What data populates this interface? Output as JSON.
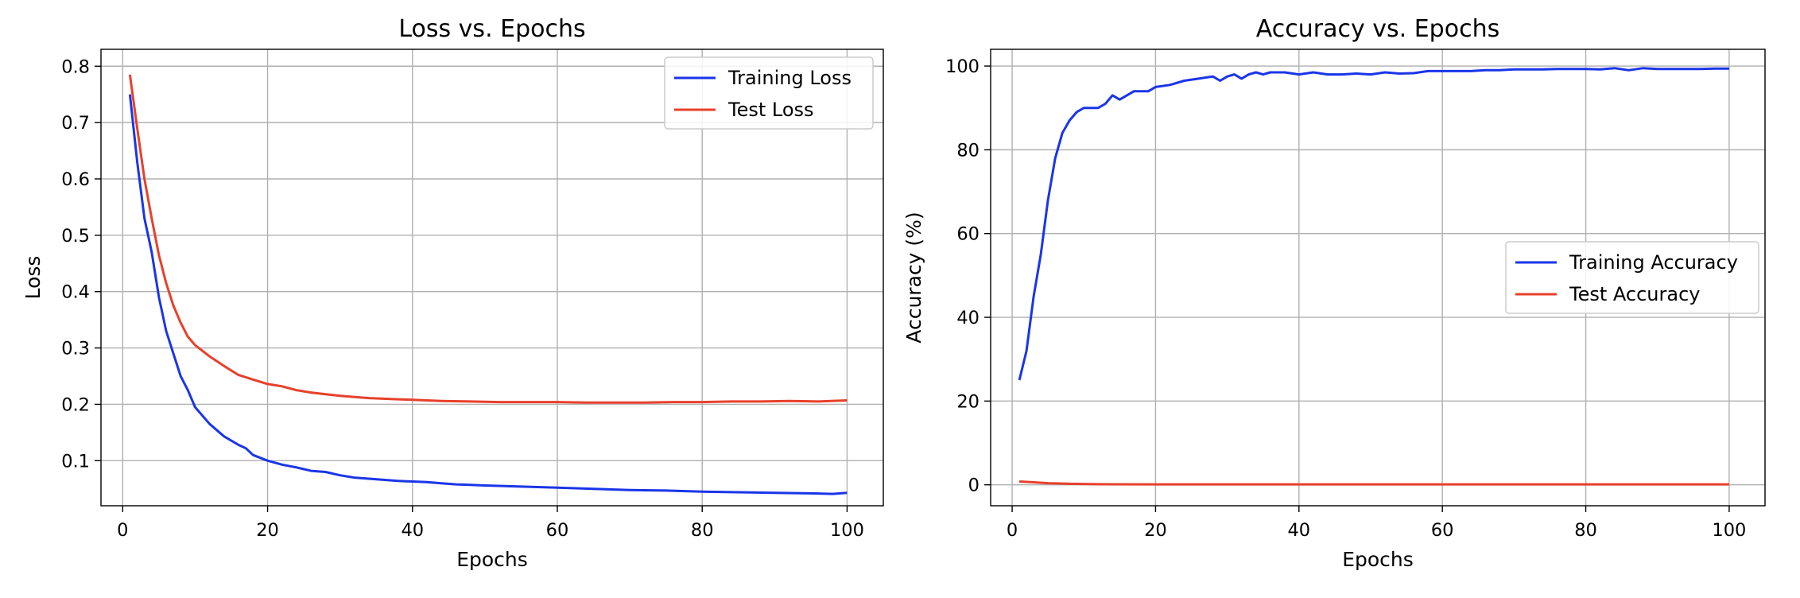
{
  "chart_data": [
    {
      "type": "line",
      "title": "Loss vs. Epochs",
      "xlabel": "Epochs",
      "ylabel": "Loss",
      "xlim": [
        -3,
        105
      ],
      "ylim": [
        0.02,
        0.83
      ],
      "xticks": [
        0,
        20,
        40,
        60,
        80,
        100
      ],
      "yticks": [
        0.1,
        0.2,
        0.3,
        0.4,
        0.5,
        0.6,
        0.7,
        0.8
      ],
      "ytick_labels": [
        "0.1",
        "0.2",
        "0.3",
        "0.4",
        "0.5",
        "0.6",
        "0.7",
        "0.8"
      ],
      "grid": true,
      "legend_position": "upper right",
      "series": [
        {
          "name": "Training Loss",
          "color": "#1a35e8",
          "x": [
            1,
            2,
            3,
            4,
            5,
            6,
            7,
            8,
            9,
            10,
            12,
            14,
            16,
            17,
            18,
            20,
            22,
            24,
            26,
            28,
            30,
            32,
            34,
            36,
            38,
            40,
            42,
            44,
            46,
            48,
            50,
            55,
            60,
            65,
            70,
            75,
            80,
            85,
            90,
            95,
            98,
            100
          ],
          "y": [
            0.75,
            0.63,
            0.53,
            0.47,
            0.39,
            0.33,
            0.29,
            0.25,
            0.225,
            0.195,
            0.165,
            0.143,
            0.128,
            0.122,
            0.11,
            0.1,
            0.093,
            0.088,
            0.082,
            0.08,
            0.074,
            0.07,
            0.068,
            0.066,
            0.064,
            0.063,
            0.062,
            0.06,
            0.058,
            0.057,
            0.056,
            0.054,
            0.052,
            0.05,
            0.048,
            0.047,
            0.045,
            0.044,
            0.043,
            0.042,
            0.041,
            0.043
          ]
        },
        {
          "name": "Test Loss",
          "color": "#e8402a",
          "x": [
            1,
            2,
            3,
            4,
            5,
            6,
            7,
            8,
            9,
            10,
            12,
            14,
            16,
            18,
            20,
            22,
            24,
            26,
            28,
            30,
            32,
            34,
            36,
            38,
            40,
            44,
            48,
            52,
            56,
            60,
            64,
            68,
            72,
            76,
            80,
            84,
            88,
            92,
            96,
            100
          ],
          "y": [
            0.785,
            0.69,
            0.6,
            0.53,
            0.465,
            0.415,
            0.375,
            0.345,
            0.32,
            0.305,
            0.285,
            0.268,
            0.252,
            0.244,
            0.236,
            0.232,
            0.225,
            0.221,
            0.218,
            0.215,
            0.213,
            0.211,
            0.21,
            0.209,
            0.208,
            0.206,
            0.205,
            0.204,
            0.204,
            0.204,
            0.203,
            0.203,
            0.203,
            0.204,
            0.204,
            0.205,
            0.205,
            0.206,
            0.205,
            0.207
          ]
        }
      ]
    },
    {
      "type": "line",
      "title": "Accuracy vs. Epochs",
      "xlabel": "Epochs",
      "ylabel": "Accuracy (%)",
      "xlim": [
        -3,
        105
      ],
      "ylim": [
        -5,
        104
      ],
      "xticks": [
        0,
        20,
        40,
        60,
        80,
        100
      ],
      "yticks": [
        0,
        20,
        40,
        60,
        80,
        100
      ],
      "ytick_labels": [
        "0",
        "20",
        "40",
        "60",
        "80",
        "100"
      ],
      "grid": true,
      "legend_position": "center right",
      "series": [
        {
          "name": "Training Accuracy",
          "color": "#1a35e8",
          "x": [
            1,
            2,
            3,
            4,
            5,
            6,
            7,
            8,
            9,
            10,
            11,
            12,
            13,
            14,
            15,
            16,
            17,
            18,
            19,
            20,
            22,
            24,
            26,
            28,
            29,
            30,
            31,
            32,
            33,
            34,
            35,
            36,
            38,
            40,
            42,
            44,
            46,
            48,
            50,
            52,
            54,
            56,
            58,
            60,
            62,
            64,
            66,
            68,
            70,
            72,
            74,
            76,
            78,
            80,
            82,
            84,
            86,
            88,
            90,
            92,
            94,
            96,
            98,
            100
          ],
          "y": [
            25,
            32,
            45,
            55,
            68,
            78,
            84,
            87,
            89,
            90,
            90,
            90,
            91,
            93,
            92,
            93,
            94,
            94,
            94,
            95,
            95.5,
            96.5,
            97,
            97.5,
            96.5,
            97.5,
            98,
            97,
            98,
            98.5,
            98,
            98.5,
            98.5,
            98,
            98.5,
            98,
            98,
            98.2,
            98,
            98.5,
            98.2,
            98.3,
            98.8,
            98.8,
            98.8,
            98.8,
            99,
            99,
            99.2,
            99.2,
            99.2,
            99.3,
            99.3,
            99.3,
            99.2,
            99.5,
            99,
            99.5,
            99.3,
            99.3,
            99.3,
            99.3,
            99.4,
            99.4
          ]
        },
        {
          "name": "Test Accuracy",
          "color": "#e8402a",
          "x": [
            1,
            3,
            5,
            8,
            12,
            20,
            40,
            60,
            80,
            100
          ],
          "y": [
            0.8,
            0.6,
            0.4,
            0.25,
            0.15,
            0.1,
            0.1,
            0.1,
            0.1,
            0.1
          ]
        }
      ]
    }
  ]
}
